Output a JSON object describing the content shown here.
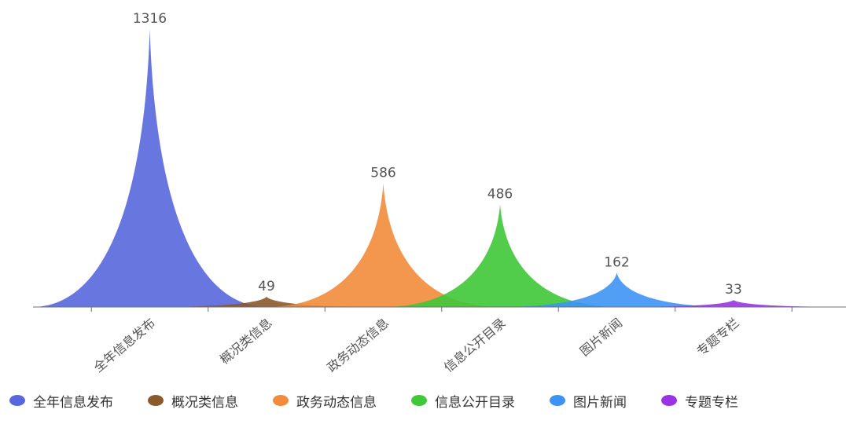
{
  "chart_data": {
    "type": "area",
    "categories": [
      "全年信息发布",
      "概况类信息",
      "政务动态信息",
      "信息公开目录",
      "图片新闻",
      "专题专栏"
    ],
    "values": [
      1316,
      49,
      586,
      486,
      162,
      33
    ],
    "ylim": [
      0,
      1400
    ],
    "grid": false,
    "legend_position": "bottom-left",
    "series": [
      {
        "name": "全年信息发布",
        "value": 1316,
        "color": "#5867dd"
      },
      {
        "name": "概况类信息",
        "value": 49,
        "color": "#8b5a2b"
      },
      {
        "name": "政务动态信息",
        "value": 586,
        "color": "#f28c3c"
      },
      {
        "name": "信息公开目录",
        "value": 486,
        "color": "#3fc837"
      },
      {
        "name": "图片新闻",
        "value": 162,
        "color": "#3d93f5"
      },
      {
        "name": "专题专栏",
        "value": 33,
        "color": "#9a33e6"
      }
    ]
  }
}
